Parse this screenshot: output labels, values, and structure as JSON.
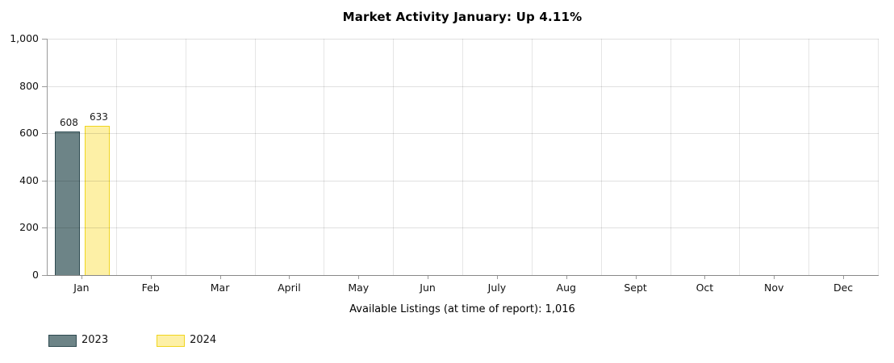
{
  "chart_data": {
    "type": "bar",
    "title": "Market Activity January: Up 4.11%",
    "xlabel": "Available Listings (at time of report): 1,016",
    "ylabel": "",
    "ylim": [
      0,
      1000
    ],
    "y_tick_values": [
      0,
      200,
      400,
      600,
      800,
      1000
    ],
    "y_tick_labels": [
      "0",
      "200",
      "400",
      "600",
      "800",
      "1,000"
    ],
    "categories": [
      "Jan",
      "Feb",
      "Mar",
      "April",
      "May",
      "Jun",
      "July",
      "Aug",
      "Sept",
      "Oct",
      "Nov",
      "Dec"
    ],
    "series": [
      {
        "name": "2023",
        "fill_color": "#6d8487",
        "border_color": "#2e4a50",
        "values": [
          608,
          null,
          null,
          null,
          null,
          null,
          null,
          null,
          null,
          null,
          null,
          null
        ]
      },
      {
        "name": "2024",
        "fill_color": "#fdf0a6",
        "border_color": "#f0d51f",
        "values": [
          633,
          null,
          null,
          null,
          null,
          null,
          null,
          null,
          null,
          null,
          null,
          null
        ]
      }
    ],
    "grid": true,
    "legend_position": "bottom-left",
    "background_color": "#ffffff"
  }
}
